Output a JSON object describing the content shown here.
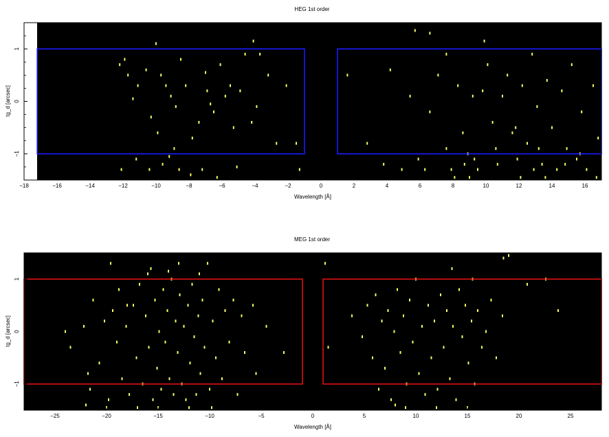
{
  "chart_data": [
    {
      "type": "scatter",
      "title": "HEG 1st order",
      "xlabel": "Wavelength [Å]",
      "ylabel": "tg_d [arcsec]",
      "xlim": [
        -18,
        17
      ],
      "ylim": [
        -1.5,
        1.5
      ],
      "xticks": [
        -18,
        -16,
        -14,
        -12,
        -10,
        -8,
        -6,
        -4,
        -2,
        0,
        2,
        4,
        6,
        8,
        10,
        12,
        14,
        16
      ],
      "xtick_labels": [
        "−18",
        "−16",
        "−14",
        "−12",
        "−10",
        "−8",
        "−6",
        "−4",
        "−2",
        "0",
        "2",
        "4",
        "6",
        "8",
        "10",
        "12",
        "14",
        "16"
      ],
      "yticks": [
        -1,
        0,
        1
      ],
      "ytick_labels": [
        "−1",
        "0",
        "1"
      ],
      "background_color": "#000000",
      "point_color": "#ffff66",
      "no_data_region": [
        -18,
        -17.2
      ],
      "regions": [
        {
          "xmin": -17.2,
          "xmax": -1,
          "ymin": -1,
          "ymax": 1,
          "color": "#1a1aff"
        },
        {
          "xmin": 1,
          "xmax": 17,
          "ymin": -1,
          "ymax": 1,
          "color": "#1a1aff"
        }
      ],
      "points": [
        [
          -12.2,
          0.7
        ],
        [
          -11.9,
          0.8
        ],
        [
          -11.7,
          0.5
        ],
        [
          -11.1,
          0.3
        ],
        [
          -10.3,
          -0.3
        ],
        [
          -9.7,
          0.5
        ],
        [
          -9.4,
          0.3
        ],
        [
          -9.1,
          0.1
        ],
        [
          -8.8,
          -0.1
        ],
        [
          -8.5,
          0.8
        ],
        [
          -8.2,
          0.3
        ],
        [
          -7.8,
          -0.7
        ],
        [
          -7.4,
          -0.4
        ],
        [
          -6.9,
          0.2
        ],
        [
          -6.5,
          -0.2
        ],
        [
          -6.1,
          0.7
        ],
        [
          -5.8,
          0.1
        ],
        [
          -5.3,
          -0.5
        ],
        [
          -4.9,
          0.2
        ],
        [
          -4.6,
          0.9
        ],
        [
          -4.2,
          -0.4
        ],
        [
          -3.7,
          0.9
        ],
        [
          -3.2,
          0.5
        ],
        [
          -2.7,
          -0.8
        ],
        [
          -2.1,
          0.3
        ],
        [
          -1.5,
          -0.8
        ],
        [
          -1.3,
          -1.3
        ],
        [
          -12.1,
          -1.3
        ],
        [
          -11.2,
          -1.1
        ],
        [
          -10.4,
          -1.3
        ],
        [
          -9.6,
          -1.2
        ],
        [
          -9.2,
          -1.05
        ],
        [
          -8.6,
          -1.3
        ],
        [
          -7.9,
          -1.4
        ],
        [
          -7.2,
          -1.3
        ],
        [
          -6.3,
          -1.45
        ],
        [
          -5.1,
          -1.25
        ],
        [
          -10.0,
          1.1
        ],
        [
          -4.1,
          1.15
        ],
        [
          -11.4,
          0.05
        ],
        [
          -9.9,
          -0.6
        ],
        [
          -8.9,
          -0.9
        ],
        [
          -6.7,
          -0.05
        ],
        [
          -7.0,
          0.55
        ],
        [
          -10.6,
          0.6
        ],
        [
          -5.5,
          0.3
        ],
        [
          -3.9,
          -0.1
        ],
        [
          1.6,
          0.5
        ],
        [
          2.8,
          -0.8
        ],
        [
          3.8,
          -1.2
        ],
        [
          4.2,
          0.6
        ],
        [
          4.9,
          -1.3
        ],
        [
          5.4,
          0.1
        ],
        [
          5.9,
          -1.1
        ],
        [
          6.3,
          -1.3
        ],
        [
          6.6,
          -0.2
        ],
        [
          7.1,
          0.5
        ],
        [
          7.6,
          0.9
        ],
        [
          7.9,
          -1.3
        ],
        [
          8.3,
          0.3
        ],
        [
          8.6,
          -0.6
        ],
        [
          8.9,
          -1.0
        ],
        [
          9.2,
          0.1
        ],
        [
          9.5,
          -1.3
        ],
        [
          9.8,
          0.2
        ],
        [
          10.1,
          0.7
        ],
        [
          10.4,
          -0.4
        ],
        [
          10.7,
          -1.2
        ],
        [
          11.0,
          0.1
        ],
        [
          11.3,
          0.5
        ],
        [
          11.6,
          -0.6
        ],
        [
          11.9,
          -1.1
        ],
        [
          12.2,
          0.3
        ],
        [
          12.5,
          -0.8
        ],
        [
          12.8,
          0.9
        ],
        [
          13.1,
          -0.1
        ],
        [
          13.4,
          -1.2
        ],
        [
          13.7,
          0.4
        ],
        [
          14.0,
          -0.5
        ],
        [
          14.3,
          -1.3
        ],
        [
          14.6,
          0.2
        ],
        [
          14.9,
          -0.9
        ],
        [
          15.2,
          0.7
        ],
        [
          15.5,
          -1.1
        ],
        [
          15.8,
          -0.2
        ],
        [
          16.1,
          -1.3
        ],
        [
          16.5,
          0.3
        ],
        [
          16.8,
          -0.7
        ],
        [
          5.7,
          1.35
        ],
        [
          6.6,
          1.3
        ],
        [
          9.9,
          1.15
        ],
        [
          8.7,
          -1.2
        ],
        [
          7.6,
          -0.9
        ],
        [
          9.0,
          -1.45
        ],
        [
          12.9,
          -1.3
        ],
        [
          13.6,
          -1.45
        ],
        [
          14.8,
          -1.2
        ],
        [
          11.8,
          -0.5
        ],
        [
          9.3,
          -1.1
        ],
        [
          10.6,
          -0.9
        ],
        [
          13.2,
          -0.9
        ],
        [
          15.7,
          -1.0
        ],
        [
          16.7,
          -1.45
        ],
        [
          8.1,
          -1.45
        ],
        [
          12.1,
          -1.45
        ]
      ]
    },
    {
      "type": "scatter",
      "title": "MEG 1st order",
      "xlabel": "Wavelength [Å]",
      "ylabel": "tg_d [arcsec]",
      "xlim": [
        -28,
        28
      ],
      "ylim": [
        -1.5,
        1.5
      ],
      "xticks": [
        -25,
        -20,
        -15,
        -10,
        -5,
        0,
        5,
        10,
        15,
        20,
        25
      ],
      "xtick_labels": [
        "−25",
        "−20",
        "−15",
        "−10",
        "−5",
        "0",
        "5",
        "10",
        "15",
        "20",
        "25"
      ],
      "yticks": [
        -1,
        0,
        1
      ],
      "ytick_labels": [
        "−1",
        "0",
        "1"
      ],
      "background_color": "#000000",
      "point_color": "#ffff66",
      "regions": [
        {
          "xmin": -28,
          "xmax": -1,
          "ymin": -1,
          "ymax": 1,
          "color": "#e01010"
        },
        {
          "xmin": 1,
          "xmax": 28,
          "ymin": -1,
          "ymax": 1,
          "color": "#e01010"
        }
      ],
      "points": [
        [
          -24.0,
          0.0
        ],
        [
          -23.5,
          -0.3
        ],
        [
          -22.2,
          0.1
        ],
        [
          -21.8,
          -0.8
        ],
        [
          -21.6,
          -1.1
        ],
        [
          -21.3,
          0.6
        ],
        [
          -20.7,
          -0.6
        ],
        [
          -20.2,
          0.2
        ],
        [
          -19.8,
          -1.3
        ],
        [
          -19.4,
          0.4
        ],
        [
          -19.0,
          -0.2
        ],
        [
          -18.8,
          0.8
        ],
        [
          -18.5,
          -0.9
        ],
        [
          -18.1,
          0.1
        ],
        [
          -17.8,
          -1.2
        ],
        [
          -17.4,
          0.5
        ],
        [
          -17.1,
          -0.5
        ],
        [
          -16.8,
          0.9
        ],
        [
          -16.5,
          -1.0
        ],
        [
          -16.2,
          0.3
        ],
        [
          -15.9,
          -0.3
        ],
        [
          -15.7,
          1.2
        ],
        [
          -15.5,
          -1.3
        ],
        [
          -15.3,
          0.6
        ],
        [
          -15.1,
          -0.7
        ],
        [
          -14.9,
          0.0
        ],
        [
          -14.7,
          -1.1
        ],
        [
          -14.5,
          0.8
        ],
        [
          -14.3,
          -0.2
        ],
        [
          -14.1,
          0.4
        ],
        [
          -13.9,
          -0.9
        ],
        [
          -13.7,
          1.0
        ],
        [
          -13.5,
          -1.2
        ],
        [
          -13.3,
          0.2
        ],
        [
          -13.1,
          -0.4
        ],
        [
          -12.9,
          0.7
        ],
        [
          -12.7,
          -1.0
        ],
        [
          -12.5,
          0.1
        ],
        [
          -12.3,
          -1.3
        ],
        [
          -12.1,
          0.5
        ],
        [
          -11.9,
          -0.6
        ],
        [
          -11.7,
          0.9
        ],
        [
          -11.5,
          -0.1
        ],
        [
          -11.3,
          -1.2
        ],
        [
          -11.1,
          0.3
        ],
        [
          -10.9,
          -0.8
        ],
        [
          -10.7,
          0.6
        ],
        [
          -10.5,
          -0.3
        ],
        [
          -10.2,
          1.3
        ],
        [
          -10.0,
          -1.1
        ],
        [
          -9.7,
          0.2
        ],
        [
          -9.4,
          -0.5
        ],
        [
          -9.1,
          0.8
        ],
        [
          -8.8,
          -0.9
        ],
        [
          -8.5,
          0.4
        ],
        [
          -8.1,
          -0.2
        ],
        [
          -7.7,
          0.6
        ],
        [
          -7.3,
          -1.2
        ],
        [
          -6.9,
          0.3
        ],
        [
          -6.6,
          -0.4
        ],
        [
          -5.8,
          0.5
        ],
        [
          -5.5,
          -0.8
        ],
        [
          -4.5,
          0.1
        ],
        [
          -2.8,
          -0.4
        ],
        [
          -19.6,
          1.3
        ],
        [
          -17.0,
          -1.45
        ],
        [
          -15.0,
          -1.45
        ],
        [
          -12.0,
          -1.45
        ],
        [
          -9.8,
          -1.45
        ],
        [
          -22.0,
          -1.4
        ],
        [
          -20.0,
          -1.45
        ],
        [
          -16.0,
          1.1
        ],
        [
          -13.0,
          1.3
        ],
        [
          -11.0,
          1.1
        ],
        [
          -18.0,
          0.5
        ],
        [
          -14.0,
          1.15
        ],
        [
          1.2,
          1.3
        ],
        [
          1.5,
          -0.3
        ],
        [
          3.8,
          0.3
        ],
        [
          4.8,
          -0.1
        ],
        [
          5.3,
          0.5
        ],
        [
          5.8,
          -0.5
        ],
        [
          6.1,
          0.7
        ],
        [
          6.4,
          -1.1
        ],
        [
          6.7,
          0.2
        ],
        [
          7.0,
          -0.7
        ],
        [
          7.3,
          0.4
        ],
        [
          7.6,
          -1.3
        ],
        [
          7.9,
          0.0
        ],
        [
          8.2,
          0.8
        ],
        [
          8.5,
          -0.4
        ],
        [
          8.8,
          0.3
        ],
        [
          9.1,
          -1.0
        ],
        [
          9.4,
          0.6
        ],
        [
          9.7,
          -0.2
        ],
        [
          10.0,
          1.0
        ],
        [
          10.3,
          -0.8
        ],
        [
          10.6,
          0.1
        ],
        [
          10.9,
          -1.2
        ],
        [
          11.2,
          0.5
        ],
        [
          11.5,
          -0.5
        ],
        [
          11.8,
          0.2
        ],
        [
          12.1,
          -1.1
        ],
        [
          12.4,
          0.7
        ],
        [
          12.7,
          -0.3
        ],
        [
          13.0,
          0.4
        ],
        [
          13.3,
          -0.9
        ],
        [
          13.6,
          0.1
        ],
        [
          13.9,
          -1.3
        ],
        [
          14.2,
          0.8
        ],
        [
          14.5,
          -0.1
        ],
        [
          14.8,
          0.5
        ],
        [
          15.1,
          -0.6
        ],
        [
          15.4,
          0.2
        ],
        [
          15.7,
          -1.0
        ],
        [
          16.0,
          0.4
        ],
        [
          16.4,
          -0.3
        ],
        [
          16.8,
          0.0
        ],
        [
          17.3,
          0.6
        ],
        [
          17.8,
          -0.5
        ],
        [
          18.4,
          0.3
        ],
        [
          19.0,
          1.45
        ],
        [
          20.8,
          0.9
        ],
        [
          22.6,
          1.0
        ],
        [
          23.8,
          0.4
        ],
        [
          8.0,
          -1.4
        ],
        [
          12.0,
          -1.45
        ],
        [
          15.0,
          -1.45
        ],
        [
          9.0,
          -1.45
        ],
        [
          13.5,
          1.2
        ],
        [
          15.5,
          1.0
        ],
        [
          18.5,
          1.4
        ]
      ]
    }
  ]
}
